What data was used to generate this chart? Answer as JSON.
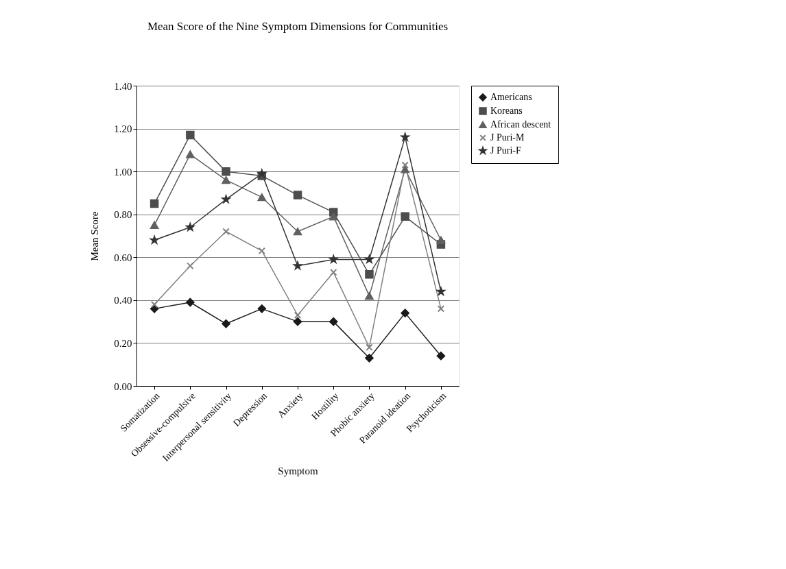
{
  "chart_data": {
    "type": "line",
    "title": "Mean Score of the Nine Symptom Dimensions for Communities",
    "xlabel": "Symptom",
    "ylabel": "Mean Score",
    "categories": [
      "Somatization",
      "Obsessive-compulsive",
      "Interpersonal sensitivity",
      "Depression",
      "Anxiety",
      "Hostility",
      "Phobic anxiety",
      "Paranoid ideation",
      "Psychoticism"
    ],
    "series": [
      {
        "name": "Americans",
        "color": "#1a1a1a",
        "marker": "diamond",
        "values": [
          0.36,
          0.39,
          0.29,
          0.36,
          0.3,
          0.3,
          0.13,
          0.34,
          0.14
        ]
      },
      {
        "name": "Koreans",
        "color": "#4d4d4d",
        "marker": "square",
        "values": [
          0.85,
          1.17,
          1.0,
          0.98,
          0.89,
          0.81,
          0.52,
          0.79,
          0.66
        ]
      },
      {
        "name": "African descent",
        "color": "#606060",
        "marker": "triangle",
        "values": [
          0.75,
          1.08,
          0.96,
          0.88,
          0.72,
          0.79,
          0.42,
          1.01,
          0.68
        ]
      },
      {
        "name": "J Puri-M",
        "color": "#808080",
        "marker": "cross",
        "values": [
          0.38,
          0.56,
          0.72,
          0.63,
          0.33,
          0.53,
          0.18,
          1.03,
          0.36
        ]
      },
      {
        "name": "J Puri-F",
        "color": "#333333",
        "marker": "star",
        "values": [
          0.68,
          0.74,
          0.87,
          0.99,
          0.56,
          0.59,
          0.59,
          1.16,
          0.44
        ]
      }
    ],
    "ylim": [
      0,
      1.4
    ],
    "yticks": [
      {
        "value": 0,
        "label": "0.00"
      },
      {
        "value": 0.2,
        "label": "0.20"
      },
      {
        "value": 0.4,
        "label": "0.40"
      },
      {
        "value": 0.6,
        "label": "0.60"
      },
      {
        "value": 0.8,
        "label": "0.80"
      },
      {
        "value": 1.0,
        "label": "1.00"
      },
      {
        "value": 1.2,
        "label": "1.20"
      },
      {
        "value": 1.4,
        "label": "1.40"
      }
    ],
    "grid": "y",
    "legend": "right",
    "line_style": "solid"
  }
}
